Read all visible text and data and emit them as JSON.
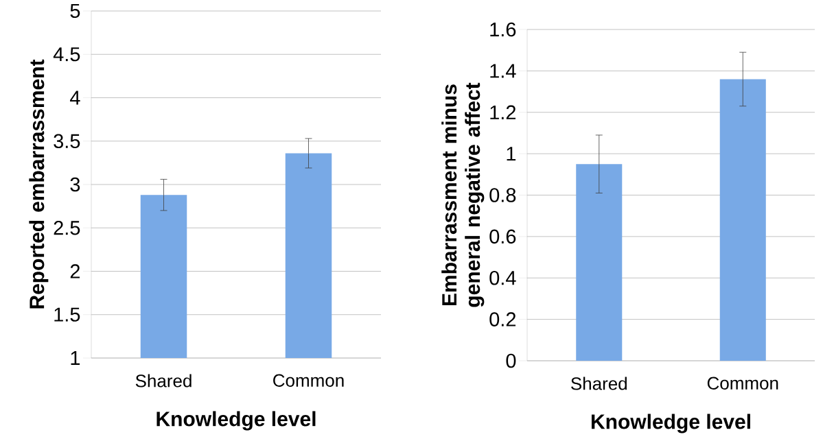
{
  "chart_data": [
    {
      "type": "bar",
      "categories": [
        "Shared",
        "Common"
      ],
      "values": [
        2.88,
        3.36
      ],
      "errors": [
        0.18,
        0.17
      ],
      "color": "#78a9e6",
      "xlabel": "Knowledge level",
      "ylabel": "Reported embarrassment",
      "ylim": [
        1,
        5
      ],
      "yticks": [
        1,
        1.5,
        2,
        2.5,
        3,
        3.5,
        4,
        4.5,
        5
      ],
      "grid": "y"
    },
    {
      "type": "bar",
      "categories": [
        "Shared",
        "Common"
      ],
      "values": [
        0.95,
        1.36
      ],
      "errors": [
        0.14,
        0.13
      ],
      "color": "#78a9e6",
      "xlabel": "Knowledge level",
      "ylabel": "Embarrassment minus general negative affect",
      "ylim": [
        0,
        1.6
      ],
      "yticks": [
        0,
        0.2,
        0.4,
        0.6,
        0.8,
        1,
        1.2,
        1.4,
        1.6
      ],
      "grid": "y"
    }
  ]
}
